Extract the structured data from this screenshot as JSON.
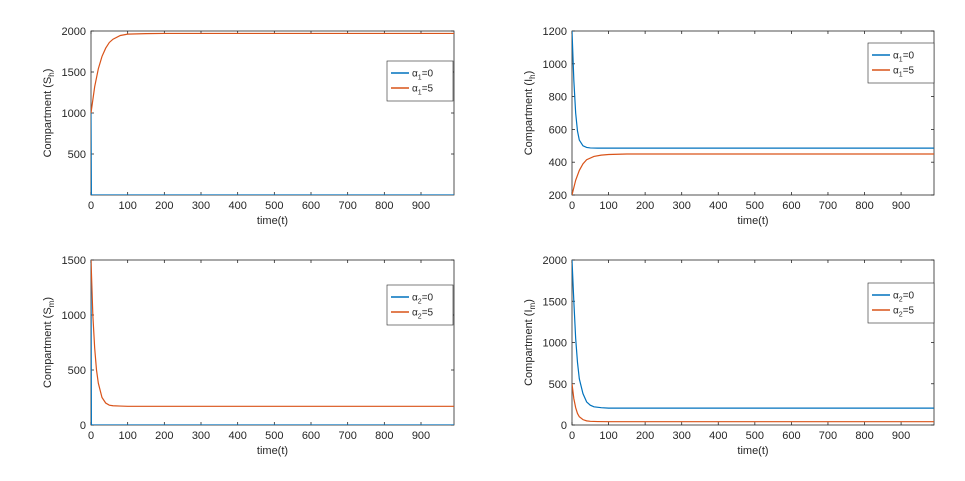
{
  "colors": {
    "blue": "#0072BD",
    "orange": "#D95319",
    "axis": "#262626"
  },
  "chart_data": [
    {
      "type": "line",
      "xlabel": "time(t)",
      "ylabel": "Compartment (S",
      "ylabel_sub": "h",
      "ylabel_close": ")",
      "xlim": [
        0,
        990
      ],
      "ylim": [
        0,
        2000
      ],
      "xticks": [
        "0",
        "100",
        "200",
        "300",
        "400",
        "500",
        "600",
        "700",
        "800",
        "900"
      ],
      "yticks": [
        "500",
        "1000",
        "1500",
        "2000"
      ],
      "ytick_values": [
        500,
        1000,
        1500,
        2000
      ],
      "legend_position": "center-right",
      "series": [
        {
          "name": "α",
          "name_sub": "1",
          "name_suffix": "=0",
          "color": "blue",
          "x": [
            0,
            1,
            2,
            990
          ],
          "y": [
            1000,
            5,
            0,
            0
          ]
        },
        {
          "name": "α",
          "name_sub": "1",
          "name_suffix": "=5",
          "color": "orange",
          "x": [
            0,
            10,
            20,
            30,
            40,
            50,
            60,
            80,
            100,
            150,
            200,
            990
          ],
          "y": [
            1000,
            1320,
            1540,
            1690,
            1790,
            1860,
            1900,
            1945,
            1962,
            1968,
            1970,
            1970
          ]
        }
      ]
    },
    {
      "type": "line",
      "xlabel": "time(t)",
      "ylabel": "Compartment (I",
      "ylabel_sub": "h",
      "ylabel_close": ")",
      "xlim": [
        0,
        990
      ],
      "ylim": [
        200,
        1200
      ],
      "xticks": [
        "0",
        "100",
        "200",
        "300",
        "400",
        "500",
        "600",
        "700",
        "800",
        "900"
      ],
      "yticks": [
        "200",
        "400",
        "600",
        "800",
        "1000",
        "1200"
      ],
      "ytick_values": [
        200,
        400,
        600,
        800,
        1000,
        1200
      ],
      "legend_position": "top-right",
      "series": [
        {
          "name": "α",
          "name_sub": "1",
          "name_suffix": "=0",
          "color": "blue",
          "x": [
            0,
            5,
            10,
            15,
            20,
            30,
            40,
            50,
            70,
            100,
            990
          ],
          "y": [
            1200,
            900,
            700,
            590,
            535,
            500,
            490,
            487,
            486,
            486,
            486
          ]
        },
        {
          "name": "α",
          "name_sub": "1",
          "name_suffix": "=5",
          "color": "orange",
          "x": [
            0,
            10,
            20,
            30,
            40,
            60,
            80,
            100,
            150,
            990
          ],
          "y": [
            200,
            290,
            350,
            390,
            415,
            435,
            443,
            447,
            450,
            450
          ]
        }
      ]
    },
    {
      "type": "line",
      "xlabel": "time(t)",
      "ylabel": "Compartment (S",
      "ylabel_sub": "m",
      "ylabel_close": ")",
      "xlim": [
        0,
        990
      ],
      "ylim": [
        0,
        1500
      ],
      "xticks": [
        "0",
        "100",
        "200",
        "300",
        "400",
        "500",
        "600",
        "700",
        "800",
        "900"
      ],
      "yticks": [
        "0",
        "500",
        "1000",
        "1500"
      ],
      "ytick_values": [
        0,
        500,
        1000,
        1500
      ],
      "legend_position": "top-right",
      "series": [
        {
          "name": "α",
          "name_sub": "2",
          "name_suffix": "=0",
          "color": "blue",
          "x": [
            0,
            1,
            2,
            990
          ],
          "y": [
            1500,
            10,
            0,
            0
          ]
        },
        {
          "name": "α",
          "name_sub": "2",
          "name_suffix": "=5",
          "color": "orange",
          "x": [
            0,
            5,
            10,
            15,
            20,
            30,
            40,
            50,
            60,
            80,
            100,
            990
          ],
          "y": [
            1500,
            1000,
            700,
            500,
            380,
            250,
            200,
            180,
            175,
            172,
            170,
            170
          ]
        }
      ]
    },
    {
      "type": "line",
      "xlabel": "time(t)",
      "ylabel": "Compartment (I",
      "ylabel_sub": "m",
      "ylabel_close": ")",
      "xlim": [
        0,
        990
      ],
      "ylim": [
        0,
        2000
      ],
      "xticks": [
        "0",
        "100",
        "200",
        "300",
        "400",
        "500",
        "600",
        "700",
        "800",
        "900"
      ],
      "yticks": [
        "0",
        "500",
        "1000",
        "1500",
        "2000"
      ],
      "ytick_values": [
        0,
        500,
        1000,
        1500,
        2000
      ],
      "legend_position": "top-right",
      "series": [
        {
          "name": "α",
          "name_sub": "2",
          "name_suffix": "=0",
          "color": "blue",
          "x": [
            0,
            5,
            10,
            15,
            20,
            30,
            40,
            50,
            60,
            80,
            100,
            990
          ],
          "y": [
            2000,
            1500,
            1050,
            760,
            560,
            380,
            280,
            240,
            220,
            210,
            205,
            205
          ]
        },
        {
          "name": "α",
          "name_sub": "2",
          "name_suffix": "=5",
          "color": "orange",
          "x": [
            0,
            5,
            10,
            15,
            20,
            30,
            40,
            50,
            70,
            100,
            990
          ],
          "y": [
            500,
            320,
            210,
            140,
            100,
            65,
            50,
            45,
            42,
            40,
            40
          ]
        }
      ]
    }
  ]
}
